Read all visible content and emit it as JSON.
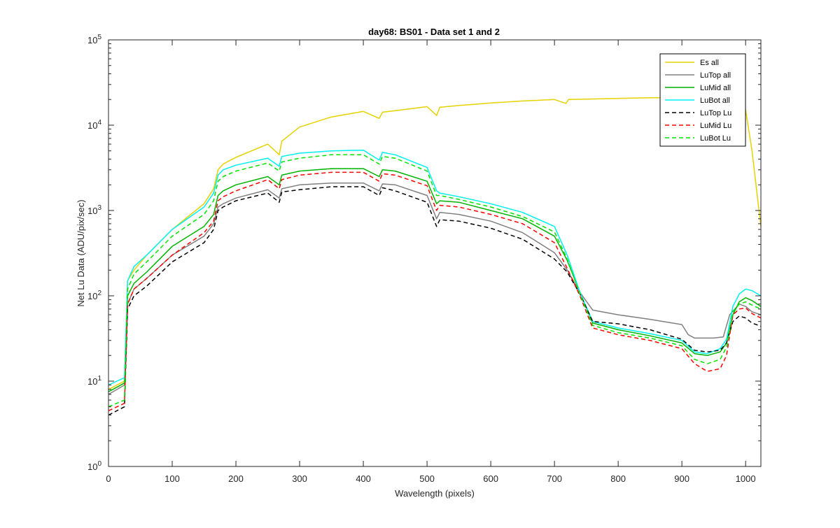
{
  "chart_data": {
    "type": "line",
    "title": "day68: BS01 - Data set 1 and 2",
    "xlabel": "Wavelength (pixels)",
    "ylabel": "Net Lu Data (ADU/pix/sec)",
    "xlim": [
      0,
      1024
    ],
    "ylim": [
      1,
      100000
    ],
    "yscale": "log",
    "grid": false,
    "legend_position": "top-right",
    "xticks": [
      0,
      100,
      200,
      300,
      400,
      500,
      600,
      700,
      800,
      900,
      1000
    ],
    "yticks": [
      {
        "value": 1,
        "base": "10",
        "exp": "0"
      },
      {
        "value": 10,
        "base": "10",
        "exp": "1"
      },
      {
        "value": 100,
        "base": "10",
        "exp": "2"
      },
      {
        "value": 1000,
        "base": "10",
        "exp": "3"
      },
      {
        "value": 10000,
        "base": "10",
        "exp": "4"
      },
      {
        "value": 100000,
        "base": "10",
        "exp": "5"
      }
    ],
    "series": [
      {
        "name": "Es  all",
        "color": "#e6d200",
        "dash": "solid",
        "x": [
          0,
          25,
          30,
          40,
          60,
          100,
          150,
          165,
          172,
          180,
          200,
          250,
          268,
          272,
          300,
          350,
          400,
          425,
          430,
          450,
          500,
          515,
          520,
          550,
          600,
          650,
          700,
          718,
          722,
          750,
          800,
          850,
          900,
          950,
          990,
          1000,
          1010,
          1024
        ],
        "y": [
          8,
          10,
          150,
          200,
          300,
          600,
          1200,
          1800,
          3000,
          3500,
          4200,
          6000,
          4500,
          6500,
          9500,
          12500,
          14500,
          12000,
          14200,
          14800,
          16500,
          13000,
          16200,
          17000,
          18200,
          19200,
          20000,
          18000,
          20000,
          20200,
          20600,
          21000,
          21000,
          21000,
          21000,
          15000,
          5000,
          650
        ]
      },
      {
        "name": "LuTop  all",
        "color": "#808080",
        "dash": "solid",
        "x": [
          0,
          25,
          30,
          40,
          60,
          100,
          150,
          165,
          172,
          180,
          200,
          250,
          268,
          272,
          300,
          350,
          400,
          425,
          430,
          450,
          500,
          515,
          520,
          550,
          600,
          650,
          700,
          720,
          740,
          760,
          800,
          850,
          900,
          910,
          920,
          950,
          965,
          975,
          990,
          1000,
          1010,
          1024
        ],
        "y": [
          7,
          9,
          80,
          120,
          160,
          300,
          500,
          700,
          1100,
          1200,
          1400,
          1750,
          1400,
          1800,
          2000,
          2100,
          2100,
          1700,
          2050,
          2000,
          1500,
          800,
          950,
          900,
          750,
          550,
          320,
          200,
          110,
          68,
          60,
          53,
          46,
          35,
          32,
          32,
          33,
          60,
          80,
          75,
          65,
          60
        ]
      },
      {
        "name": "LuMid  all",
        "color": "#00b400",
        "dash": "solid",
        "x": [
          0,
          25,
          30,
          40,
          60,
          100,
          150,
          165,
          172,
          180,
          200,
          250,
          268,
          272,
          300,
          350,
          400,
          425,
          430,
          450,
          500,
          515,
          520,
          550,
          600,
          650,
          700,
          720,
          740,
          760,
          800,
          850,
          900,
          920,
          940,
          960,
          970,
          980,
          990,
          1000,
          1010,
          1024
        ],
        "y": [
          7.5,
          9.5,
          100,
          140,
          190,
          380,
          650,
          900,
          1500,
          1700,
          2000,
          2500,
          2000,
          2600,
          2900,
          3100,
          3100,
          2500,
          3000,
          2900,
          2200,
          1200,
          1300,
          1250,
          1000,
          800,
          500,
          260,
          110,
          48,
          40,
          34,
          28,
          21,
          20,
          22,
          28,
          60,
          85,
          95,
          88,
          75
        ]
      },
      {
        "name": "LuBot  all",
        "color": "#00f0f0",
        "dash": "solid",
        "x": [
          0,
          25,
          30,
          40,
          60,
          100,
          150,
          165,
          172,
          180,
          200,
          250,
          268,
          272,
          300,
          350,
          400,
          425,
          430,
          450,
          500,
          515,
          520,
          550,
          600,
          650,
          700,
          720,
          740,
          760,
          800,
          850,
          900,
          920,
          940,
          960,
          970,
          980,
          990,
          1000,
          1010,
          1024
        ],
        "y": [
          9,
          11,
          150,
          220,
          300,
          600,
          1100,
          1600,
          2600,
          3000,
          3400,
          4100,
          3300,
          4300,
          4700,
          5000,
          5100,
          3900,
          4800,
          4500,
          3200,
          1700,
          1600,
          1450,
          1200,
          950,
          650,
          300,
          110,
          50,
          42,
          36,
          30,
          22,
          21,
          24,
          31,
          75,
          105,
          120,
          115,
          100
        ]
      },
      {
        "name": "LuTop  Lu",
        "color": "#000000",
        "dash": "dashed",
        "x": [
          0,
          25,
          30,
          40,
          60,
          100,
          150,
          165,
          172,
          180,
          200,
          250,
          268,
          272,
          300,
          350,
          400,
          425,
          430,
          450,
          500,
          515,
          520,
          550,
          600,
          650,
          700,
          720,
          740,
          760,
          800,
          850,
          900,
          920,
          940,
          960,
          970,
          980,
          990,
          1000,
          1010,
          1024
        ],
        "y": [
          4,
          5,
          70,
          100,
          130,
          250,
          420,
          600,
          1000,
          1100,
          1300,
          1600,
          1250,
          1650,
          1750,
          1900,
          1900,
          1500,
          1850,
          1700,
          1250,
          650,
          780,
          750,
          620,
          460,
          270,
          190,
          105,
          50,
          47,
          40,
          31,
          23,
          22,
          23,
          28,
          50,
          58,
          55,
          48,
          44
        ]
      },
      {
        "name": "LuMid  Lu",
        "color": "#ff0000",
        "dash": "dashed",
        "x": [
          0,
          25,
          30,
          40,
          60,
          100,
          150,
          165,
          172,
          180,
          200,
          250,
          268,
          272,
          300,
          350,
          400,
          425,
          430,
          450,
          500,
          515,
          520,
          550,
          600,
          650,
          700,
          720,
          740,
          760,
          800,
          850,
          900,
          920,
          940,
          960,
          970,
          980,
          990,
          1000,
          1010,
          1024
        ],
        "y": [
          4.5,
          5.5,
          80,
          120,
          160,
          300,
          550,
          750,
          1300,
          1450,
          1700,
          2300,
          1800,
          2300,
          2600,
          2800,
          2800,
          2200,
          2700,
          2600,
          1950,
          1000,
          1150,
          1100,
          900,
          700,
          420,
          210,
          100,
          42,
          35,
          30,
          24,
          16,
          13,
          14,
          20,
          60,
          70,
          72,
          62,
          55
        ]
      },
      {
        "name": "LuBot  Lu",
        "color": "#00e600",
        "dash": "dashed",
        "x": [
          0,
          25,
          30,
          40,
          60,
          100,
          150,
          165,
          172,
          180,
          200,
          250,
          268,
          272,
          300,
          350,
          400,
          425,
          430,
          450,
          500,
          515,
          520,
          550,
          600,
          650,
          700,
          720,
          740,
          760,
          800,
          850,
          900,
          920,
          940,
          960,
          970,
          980,
          990,
          1000,
          1010,
          1024
        ],
        "y": [
          5,
          6,
          120,
          180,
          250,
          500,
          900,
          1300,
          2200,
          2500,
          2900,
          3600,
          2900,
          3700,
          4100,
          4500,
          4500,
          3500,
          4300,
          4100,
          2900,
          1500,
          1500,
          1350,
          1100,
          850,
          560,
          270,
          105,
          45,
          37,
          32,
          26,
          18,
          16,
          18,
          25,
          65,
          80,
          85,
          78,
          70
        ]
      }
    ]
  }
}
